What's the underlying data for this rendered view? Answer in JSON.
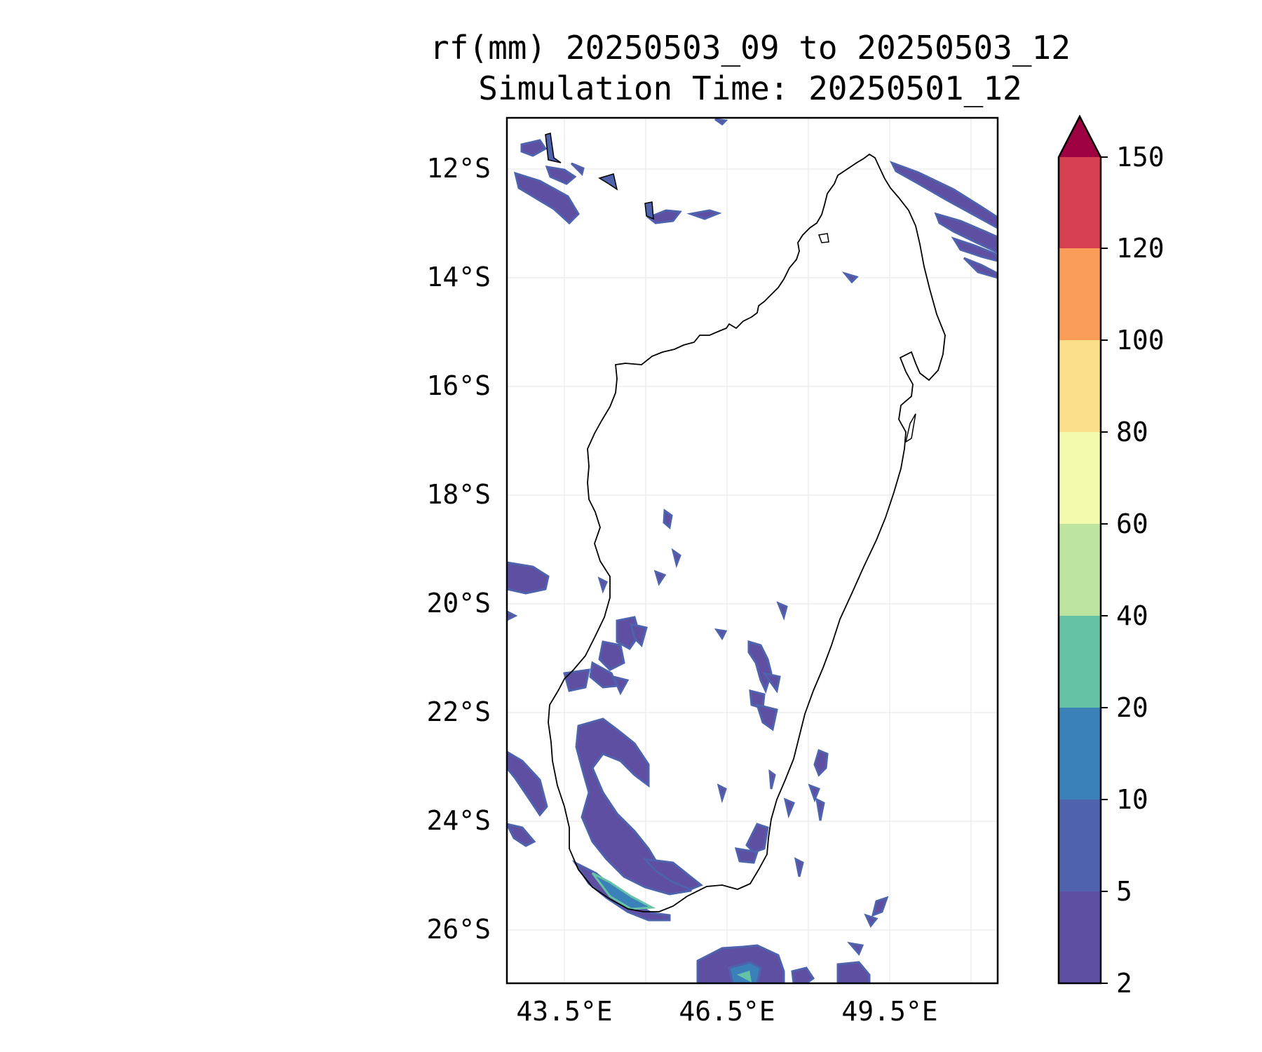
{
  "title_line1": "rf(mm) 20250503_09 to 20250503_12",
  "title_line2": "Simulation Time: 20250501_12",
  "lat_ticks": [
    "12°S",
    "14°S",
    "16°S",
    "18°S",
    "20°S",
    "22°S",
    "24°S",
    "26°S"
  ],
  "lon_ticks": [
    "43.5°E",
    "46.5°E",
    "49.5°E"
  ],
  "colorbar": {
    "ticks": [
      "2",
      "5",
      "10",
      "20",
      "40",
      "60",
      "80",
      "100",
      "120",
      "150"
    ],
    "colors": [
      "#5e4fa2",
      "#4e62ad",
      "#3a80b9",
      "#66c2a5",
      "#bde5a0",
      "#f3faad",
      "#fbe08b",
      "#f99d59",
      "#d53f50",
      "#9e0142"
    ],
    "extend": "max"
  },
  "map": {
    "lon_range": [
      42.5,
      51.5
    ],
    "lat_range": [
      -27.0,
      -11.0
    ],
    "grid": true,
    "precip_colors": {
      "low": "#5e4fa2",
      "mid": "#4e62ad",
      "high": "#3a80b9",
      "peak": "#66c2a5"
    }
  }
}
